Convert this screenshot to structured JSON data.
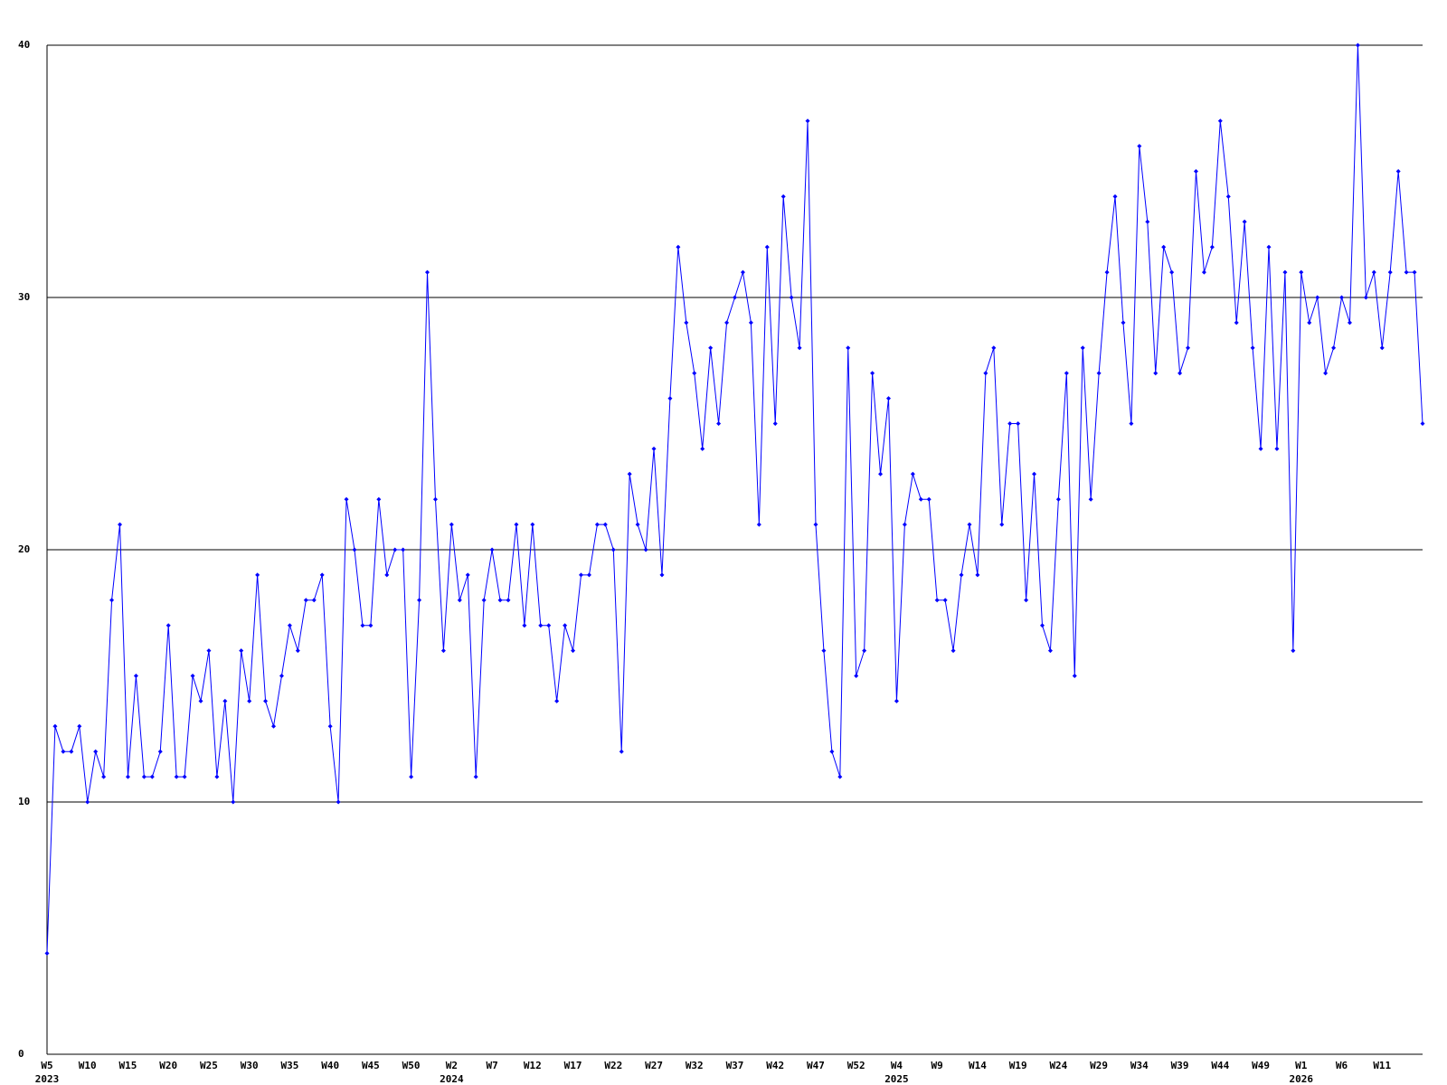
{
  "chart_data": {
    "type": "line",
    "color": "#0000ff",
    "grid": true,
    "ylim": [
      0,
      40
    ],
    "yticks": [
      0,
      10,
      20,
      30,
      40
    ],
    "categories": [
      "W5",
      null,
      null,
      null,
      null,
      "W10",
      null,
      null,
      null,
      null,
      "W15",
      null,
      null,
      null,
      null,
      "W20",
      null,
      null,
      null,
      null,
      "W25",
      null,
      null,
      null,
      null,
      "W30",
      null,
      null,
      null,
      null,
      "W35",
      null,
      null,
      null,
      null,
      "W40",
      null,
      null,
      null,
      null,
      "W45",
      null,
      null,
      null,
      null,
      "W50",
      null,
      null,
      null,
      null,
      "W2",
      null,
      null,
      null,
      null,
      "W7",
      null,
      null,
      null,
      null,
      "W12",
      null,
      null,
      null,
      null,
      "W17",
      null,
      null,
      null,
      null,
      "W22",
      null,
      null,
      null,
      null,
      "W27",
      null,
      null,
      null,
      null,
      "W32",
      null,
      null,
      null,
      null,
      "W37",
      null,
      null,
      null,
      null,
      "W42",
      null,
      null,
      null,
      null,
      "W47",
      null,
      null,
      null,
      null,
      "W52",
      null,
      null,
      null,
      null,
      "W4",
      null,
      null,
      null,
      null,
      "W9",
      null,
      null,
      null,
      null,
      "W14",
      null,
      null,
      null,
      null,
      "W19",
      null,
      null,
      null,
      null,
      "W24",
      null,
      null,
      null,
      null,
      "W29",
      null,
      null,
      null,
      null,
      "W34",
      null,
      null,
      null,
      null,
      "W39",
      null,
      null,
      null,
      null,
      "W44",
      null,
      null,
      null,
      null,
      "W49",
      null,
      null,
      null,
      null,
      "W1",
      null,
      null,
      null,
      null,
      "W6",
      null,
      null,
      null,
      null,
      "W11",
      null,
      null,
      null,
      null,
      null
    ],
    "category_years": [
      "2023",
      null,
      null,
      null,
      null,
      null,
      null,
      null,
      null,
      null,
      null,
      null,
      null,
      null,
      null,
      null,
      null,
      null,
      null,
      null,
      null,
      null,
      null,
      null,
      null,
      null,
      null,
      null,
      null,
      null,
      null,
      null,
      null,
      null,
      null,
      null,
      null,
      null,
      null,
      null,
      null,
      null,
      null,
      null,
      null,
      null,
      null,
      null,
      null,
      null,
      "2024",
      null,
      null,
      null,
      null,
      null,
      null,
      null,
      null,
      null,
      null,
      null,
      null,
      null,
      null,
      null,
      null,
      null,
      null,
      null,
      null,
      null,
      null,
      null,
      null,
      null,
      null,
      null,
      null,
      null,
      null,
      null,
      null,
      null,
      null,
      null,
      null,
      null,
      null,
      null,
      null,
      null,
      null,
      null,
      null,
      null,
      null,
      null,
      null,
      null,
      null,
      null,
      null,
      null,
      null,
      "2025",
      null,
      null,
      null,
      null,
      null,
      null,
      null,
      null,
      null,
      null,
      null,
      null,
      null,
      null,
      null,
      null,
      null,
      null,
      null,
      null,
      null,
      null,
      null,
      null,
      null,
      null,
      null,
      null,
      null,
      null,
      null,
      null,
      null,
      null,
      null,
      null,
      null,
      null,
      null,
      null,
      null,
      null,
      null,
      null,
      null,
      null,
      null,
      null,
      null,
      "2026",
      null,
      null,
      null,
      null,
      null,
      null,
      null,
      null,
      null,
      null,
      null,
      null,
      null,
      null,
      null
    ],
    "values": [
      4,
      13,
      12,
      12,
      13,
      10,
      12,
      11,
      18,
      21,
      11,
      15,
      11,
      11,
      12,
      17,
      11,
      11,
      15,
      14,
      16,
      11,
      14,
      10,
      16,
      14,
      19,
      14,
      13,
      15,
      17,
      16,
      18,
      18,
      19,
      13,
      10,
      22,
      20,
      17,
      17,
      22,
      19,
      20,
      20,
      11,
      18,
      31,
      22,
      16,
      21,
      18,
      19,
      11,
      18,
      20,
      18,
      18,
      21,
      17,
      21,
      17,
      17,
      14,
      17,
      16,
      19,
      19,
      21,
      21,
      20,
      12,
      23,
      21,
      20,
      24,
      19,
      26,
      32,
      29,
      27,
      24,
      28,
      25,
      29,
      30,
      31,
      29,
      21,
      32,
      25,
      34,
      30,
      28,
      37,
      21,
      16,
      12,
      11,
      28,
      15,
      16,
      27,
      23,
      26,
      14,
      21,
      23,
      22,
      22,
      18,
      18,
      16,
      19,
      21,
      19,
      27,
      28,
      21,
      25,
      25,
      18,
      23,
      17,
      16,
      22,
      27,
      15,
      28,
      22,
      27,
      31,
      34,
      29,
      25,
      36,
      33,
      27,
      32,
      31,
      27,
      28,
      35,
      31,
      32,
      37,
      34,
      29,
      33,
      28,
      24,
      32,
      24,
      31,
      16,
      31,
      29,
      30,
      27,
      28,
      30,
      29,
      40,
      30,
      31,
      28,
      31,
      35,
      31,
      31,
      25
    ]
  }
}
